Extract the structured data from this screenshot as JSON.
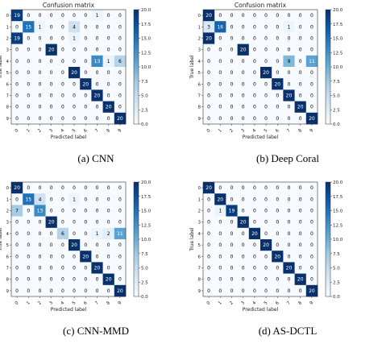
{
  "figure": {
    "panels": [
      {
        "caption": "(a) CNN"
      },
      {
        "caption": "(b) Deep Coral"
      },
      {
        "caption": "(c) CNN-MMD"
      },
      {
        "caption": "(d) AS-DCTL"
      }
    ]
  },
  "chart_data": [
    {
      "type": "heatmap",
      "title": "Confusion matrix",
      "caption": "(a) CNN",
      "xlabel": "Predicted label",
      "ylabel": "True label",
      "xticks": [
        "0",
        "1",
        "2",
        "3",
        "4",
        "5",
        "6",
        "7",
        "8",
        "9"
      ],
      "yticks": [
        "0",
        "1",
        "2",
        "3",
        "4",
        "5",
        "6",
        "7",
        "8",
        "9"
      ],
      "colorbar": {
        "min": 0,
        "max": 20,
        "ticks": [
          "0.0",
          "2.5",
          "5.0",
          "7.5",
          "10.0",
          "12.5",
          "15.0",
          "17.5",
          "20.0"
        ]
      },
      "matrix": [
        [
          19,
          0,
          0,
          0,
          0,
          0,
          0,
          1,
          0,
          0
        ],
        [
          0,
          15,
          1,
          0,
          0,
          4,
          0,
          0,
          0,
          0
        ],
        [
          19,
          0,
          0,
          0,
          0,
          1,
          0,
          0,
          0,
          0
        ],
        [
          0,
          0,
          0,
          20,
          0,
          0,
          0,
          0,
          0,
          0
        ],
        [
          0,
          0,
          0,
          0,
          0,
          0,
          0,
          13,
          1,
          6
        ],
        [
          0,
          0,
          0,
          0,
          0,
          20,
          0,
          0,
          0,
          0
        ],
        [
          0,
          0,
          0,
          0,
          0,
          0,
          20,
          0,
          0,
          0
        ],
        [
          0,
          0,
          0,
          0,
          0,
          0,
          0,
          20,
          0,
          0
        ],
        [
          0,
          0,
          0,
          0,
          0,
          0,
          0,
          0,
          20,
          0
        ],
        [
          0,
          0,
          0,
          0,
          0,
          0,
          0,
          0,
          0,
          20
        ]
      ]
    },
    {
      "type": "heatmap",
      "title": "Confusion matrix",
      "caption": "(b) Deep Coral",
      "xlabel": "Predicted label",
      "ylabel": "True label",
      "xticks": [
        "0",
        "1",
        "2",
        "3",
        "4",
        "5",
        "6",
        "7",
        "8",
        "9"
      ],
      "yticks": [
        "0",
        "1",
        "2",
        "3",
        "4",
        "5",
        "6",
        "7",
        "8",
        "9"
      ],
      "colorbar": {
        "min": 0,
        "max": 20,
        "ticks": [
          "0.0",
          "2.5",
          "5.0",
          "7.5",
          "10.0",
          "12.5",
          "15.0",
          "17.5",
          "20.0"
        ]
      },
      "matrix": [
        [
          20,
          0,
          0,
          0,
          0,
          0,
          0,
          0,
          0,
          0
        ],
        [
          3,
          16,
          0,
          0,
          0,
          0,
          0,
          1,
          0,
          0
        ],
        [
          20,
          0,
          0,
          0,
          0,
          0,
          0,
          0,
          0,
          0
        ],
        [
          0,
          0,
          0,
          20,
          0,
          0,
          0,
          0,
          0,
          0
        ],
        [
          0,
          0,
          0,
          0,
          0,
          0,
          0,
          9,
          0,
          11
        ],
        [
          0,
          0,
          0,
          0,
          0,
          20,
          0,
          0,
          0,
          0
        ],
        [
          0,
          0,
          0,
          0,
          0,
          0,
          20,
          0,
          0,
          0
        ],
        [
          0,
          0,
          0,
          0,
          0,
          0,
          0,
          20,
          0,
          0
        ],
        [
          0,
          0,
          0,
          0,
          0,
          0,
          0,
          0,
          20,
          0
        ],
        [
          0,
          0,
          0,
          0,
          0,
          0,
          0,
          0,
          0,
          20
        ]
      ]
    },
    {
      "type": "heatmap",
      "title": "",
      "caption": "(c) CNN-MMD",
      "xlabel": "Predicted label",
      "ylabel": "True label",
      "xticks": [
        "0",
        "1",
        "2",
        "3",
        "4",
        "5",
        "6",
        "7",
        "8",
        "9"
      ],
      "yticks": [
        "0",
        "1",
        "2",
        "3",
        "4",
        "5",
        "6",
        "7",
        "8",
        "9"
      ],
      "colorbar": {
        "min": 0,
        "max": 20,
        "ticks": [
          "0.0",
          "2.5",
          "5.0",
          "7.5",
          "10.0",
          "12.5",
          "15.0",
          "17.5",
          "20.0"
        ]
      },
      "matrix": [
        [
          20,
          0,
          0,
          0,
          0,
          0,
          0,
          0,
          0,
          0
        ],
        [
          0,
          15,
          4,
          0,
          0,
          1,
          0,
          0,
          0,
          0
        ],
        [
          7,
          0,
          13,
          0,
          0,
          0,
          0,
          0,
          0,
          0
        ],
        [
          0,
          0,
          0,
          20,
          0,
          0,
          0,
          0,
          0,
          0
        ],
        [
          0,
          0,
          0,
          0,
          6,
          0,
          0,
          1,
          2,
          11
        ],
        [
          0,
          0,
          0,
          0,
          0,
          20,
          0,
          0,
          0,
          0
        ],
        [
          0,
          0,
          0,
          0,
          0,
          0,
          20,
          0,
          0,
          0
        ],
        [
          0,
          0,
          0,
          0,
          0,
          0,
          0,
          20,
          0,
          0
        ],
        [
          0,
          0,
          0,
          0,
          0,
          0,
          0,
          0,
          20,
          0
        ],
        [
          0,
          0,
          0,
          0,
          0,
          0,
          0,
          0,
          0,
          20
        ]
      ]
    },
    {
      "type": "heatmap",
      "title": "",
      "caption": "(d) AS-DCTL",
      "xlabel": "Predicted label",
      "ylabel": "True label",
      "xticks": [
        "0",
        "1",
        "2",
        "3",
        "4",
        "5",
        "6",
        "7",
        "8",
        "9"
      ],
      "yticks": [
        "0",
        "1",
        "2",
        "3",
        "4",
        "5",
        "6",
        "7",
        "8",
        "9"
      ],
      "colorbar": {
        "min": 0,
        "max": 20,
        "ticks": [
          "0.0",
          "2.5",
          "5.0",
          "7.5",
          "10.0",
          "12.5",
          "15.0",
          "17.5",
          "20.0"
        ]
      },
      "matrix": [
        [
          20,
          0,
          0,
          0,
          0,
          0,
          0,
          0,
          0,
          0
        ],
        [
          0,
          20,
          0,
          0,
          0,
          0,
          0,
          0,
          0,
          0
        ],
        [
          0,
          1,
          19,
          0,
          0,
          0,
          0,
          0,
          0,
          0
        ],
        [
          0,
          0,
          0,
          20,
          0,
          0,
          0,
          0,
          0,
          0
        ],
        [
          0,
          0,
          0,
          0,
          20,
          0,
          0,
          0,
          0,
          0
        ],
        [
          0,
          0,
          0,
          0,
          0,
          20,
          0,
          0,
          0,
          0
        ],
        [
          0,
          0,
          0,
          0,
          0,
          0,
          20,
          0,
          0,
          0
        ],
        [
          0,
          0,
          0,
          0,
          0,
          0,
          0,
          20,
          0,
          0
        ],
        [
          0,
          0,
          0,
          0,
          0,
          0,
          0,
          0,
          20,
          0
        ],
        [
          0,
          0,
          0,
          0,
          0,
          0,
          0,
          0,
          0,
          20
        ]
      ]
    }
  ]
}
